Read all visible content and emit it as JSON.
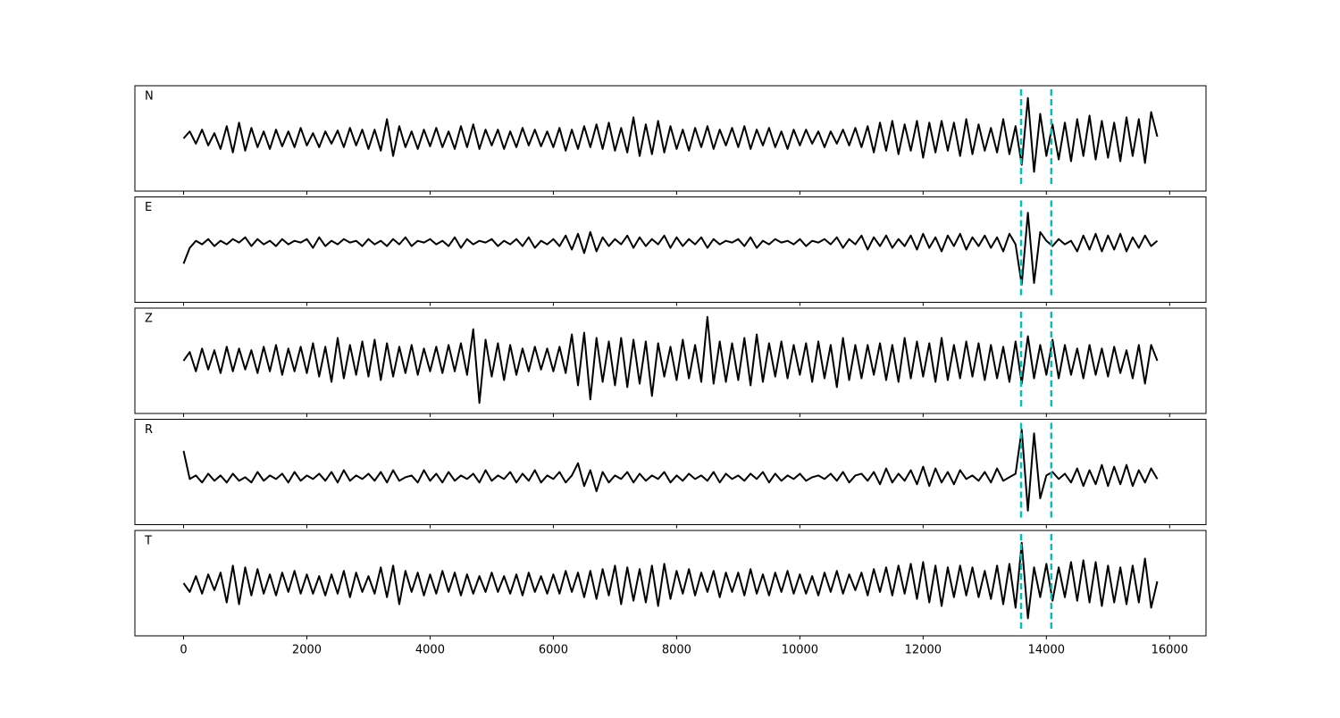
{
  "chart_data": {
    "type": "line",
    "layout": "stacked",
    "x": [
      0,
      100,
      200,
      300,
      400,
      500,
      600,
      700,
      800,
      900,
      1000,
      1100,
      1200,
      1300,
      1400,
      1500,
      1600,
      1700,
      1800,
      1900,
      2000,
      2100,
      2200,
      2300,
      2400,
      2500,
      2600,
      2700,
      2800,
      2900,
      3000,
      3100,
      3200,
      3300,
      3400,
      3500,
      3600,
      3700,
      3800,
      3900,
      4000,
      4100,
      4200,
      4300,
      4400,
      4500,
      4600,
      4700,
      4800,
      4900,
      5000,
      5100,
      5200,
      5300,
      5400,
      5500,
      5600,
      5700,
      5800,
      5900,
      6000,
      6100,
      6200,
      6300,
      6400,
      6500,
      6600,
      6700,
      6800,
      6900,
      7000,
      7100,
      7200,
      7300,
      7400,
      7500,
      7600,
      7700,
      7800,
      7900,
      8000,
      8100,
      8200,
      8300,
      8400,
      8500,
      8600,
      8700,
      8800,
      8900,
      9000,
      9100,
      9200,
      9300,
      9400,
      9500,
      9600,
      9700,
      9800,
      9900,
      10000,
      10100,
      10200,
      10300,
      10400,
      10500,
      10600,
      10700,
      10800,
      10900,
      11000,
      11100,
      11200,
      11300,
      11400,
      11500,
      11600,
      11700,
      11800,
      11900,
      12000,
      12100,
      12200,
      12300,
      12400,
      12500,
      12600,
      12700,
      12800,
      12900,
      13000,
      13100,
      13200,
      13300,
      13400,
      13500,
      13600,
      13700,
      13800,
      13900,
      14000,
      14100,
      14200,
      14300,
      14400,
      14500,
      14600,
      14700,
      14800,
      14900,
      15000,
      15100,
      15200,
      15300,
      15400,
      15500,
      15600,
      15700,
      15800
    ],
    "series": [
      {
        "name": "N",
        "color": "#000000",
        "values": [
          0,
          8,
          -6,
          10,
          -8,
          6,
          -12,
          14,
          -16,
          18,
          -14,
          12,
          -10,
          8,
          -12,
          10,
          -9,
          8,
          -10,
          12,
          -8,
          6,
          -10,
          8,
          -6,
          9,
          -10,
          12,
          -8,
          10,
          -12,
          10,
          -14,
          22,
          -20,
          14,
          -10,
          8,
          -12,
          10,
          -9,
          12,
          -10,
          8,
          -12,
          14,
          -10,
          16,
          -12,
          10,
          -8,
          10,
          -12,
          8,
          -10,
          12,
          -8,
          10,
          -9,
          8,
          -10,
          12,
          -14,
          10,
          -12,
          14,
          -10,
          16,
          -12,
          18,
          -14,
          12,
          -16,
          24,
          -20,
          16,
          -18,
          20,
          -16,
          14,
          -12,
          10,
          -14,
          12,
          -10,
          14,
          -12,
          10,
          -8,
          12,
          -10,
          14,
          -12,
          10,
          -8,
          12,
          -10,
          8,
          -12,
          10,
          -8,
          10,
          -6,
          8,
          -10,
          8,
          -6,
          10,
          -8,
          12,
          -10,
          14,
          -16,
          18,
          -14,
          20,
          -18,
          16,
          -14,
          20,
          -22,
          18,
          -16,
          20,
          -14,
          18,
          -20,
          22,
          -18,
          16,
          -14,
          12,
          -16,
          22,
          -18,
          14,
          -30,
          46,
          -38,
          28,
          -20,
          16,
          -24,
          18,
          -26,
          22,
          -20,
          26,
          -24,
          20,
          -22,
          18,
          -26,
          24,
          -20,
          22,
          -28,
          30,
          2
        ]
      },
      {
        "name": "E",
        "color": "#000000",
        "values": [
          -16,
          2,
          10,
          6,
          12,
          4,
          10,
          6,
          12,
          8,
          14,
          4,
          12,
          6,
          10,
          4,
          12,
          6,
          10,
          8,
          12,
          2,
          14,
          4,
          10,
          6,
          12,
          8,
          10,
          4,
          12,
          6,
          10,
          4,
          12,
          6,
          14,
          4,
          10,
          8,
          12,
          6,
          10,
          4,
          14,
          2,
          12,
          6,
          10,
          8,
          12,
          4,
          10,
          6,
          12,
          4,
          14,
          2,
          10,
          6,
          12,
          4,
          16,
          0,
          18,
          -4,
          20,
          -2,
          14,
          4,
          12,
          6,
          16,
          2,
          14,
          4,
          12,
          6,
          16,
          2,
          14,
          4,
          12,
          6,
          14,
          2,
          12,
          6,
          10,
          8,
          12,
          4,
          14,
          2,
          10,
          6,
          12,
          8,
          10,
          6,
          12,
          4,
          10,
          8,
          12,
          6,
          14,
          2,
          12,
          6,
          16,
          0,
          14,
          4,
          16,
          2,
          12,
          4,
          16,
          0,
          18,
          2,
          14,
          -2,
          16,
          4,
          18,
          0,
          14,
          4,
          16,
          2,
          14,
          -2,
          18,
          6,
          -40,
          42,
          -38,
          20,
          10,
          4,
          12,
          6,
          10,
          -2,
          16,
          0,
          18,
          -2,
          16,
          0,
          18,
          -2,
          14,
          2,
          16,
          4,
          10
        ]
      },
      {
        "name": "Z",
        "color": "#000000",
        "values": [
          0,
          10,
          -12,
          14,
          -10,
          12,
          -14,
          16,
          -12,
          14,
          -10,
          12,
          -14,
          16,
          -12,
          18,
          -16,
          14,
          -12,
          16,
          -14,
          20,
          -18,
          16,
          -24,
          26,
          -20,
          18,
          -16,
          22,
          -18,
          24,
          -22,
          20,
          -18,
          16,
          -14,
          18,
          -16,
          14,
          -12,
          16,
          -14,
          18,
          -12,
          20,
          -16,
          36,
          -48,
          24,
          -18,
          20,
          -22,
          18,
          -16,
          14,
          -12,
          16,
          -10,
          14,
          -12,
          16,
          -14,
          30,
          -28,
          32,
          -44,
          26,
          -24,
          22,
          -28,
          26,
          -30,
          24,
          -26,
          22,
          -40,
          20,
          -18,
          16,
          -22,
          24,
          -20,
          18,
          -24,
          50,
          -26,
          22,
          -24,
          20,
          -22,
          26,
          -28,
          30,
          -24,
          20,
          -18,
          22,
          -20,
          18,
          -16,
          20,
          -24,
          22,
          -20,
          18,
          -30,
          26,
          -22,
          18,
          -20,
          18,
          -16,
          20,
          -22,
          18,
          -24,
          26,
          -20,
          22,
          -18,
          20,
          -24,
          26,
          -22,
          18,
          -20,
          22,
          -18,
          20,
          -22,
          18,
          -20,
          16,
          -24,
          22,
          -26,
          28,
          -20,
          18,
          -16,
          24,
          -20,
          18,
          -16,
          14,
          -20,
          18,
          -16,
          14,
          -18,
          16,
          -14,
          12,
          -20,
          18,
          -26,
          18,
          0
        ]
      },
      {
        "name": "R",
        "color": "#000000",
        "values": [
          24,
          -8,
          -4,
          -12,
          -2,
          -10,
          -4,
          -12,
          -2,
          -10,
          -6,
          -12,
          0,
          -10,
          -4,
          -8,
          -2,
          -12,
          0,
          -10,
          -4,
          -8,
          -2,
          -10,
          0,
          -12,
          2,
          -10,
          -4,
          -8,
          -2,
          -10,
          0,
          -12,
          2,
          -10,
          -6,
          -4,
          -12,
          2,
          -10,
          -2,
          -12,
          0,
          -10,
          -4,
          -8,
          -2,
          -12,
          2,
          -10,
          -4,
          -8,
          0,
          -12,
          -2,
          -10,
          2,
          -12,
          -4,
          -8,
          0,
          -12,
          -4,
          10,
          -16,
          2,
          -22,
          0,
          -12,
          -4,
          -8,
          0,
          -12,
          -2,
          -10,
          -4,
          -8,
          0,
          -12,
          -4,
          -10,
          -2,
          -8,
          -4,
          -10,
          0,
          -12,
          -2,
          -8,
          -4,
          -10,
          -2,
          -8,
          0,
          -12,
          -2,
          -10,
          -4,
          -8,
          -2,
          -10,
          -6,
          -4,
          -8,
          -2,
          -10,
          0,
          -12,
          -4,
          -2,
          -10,
          0,
          -14,
          4,
          -12,
          -2,
          -10,
          2,
          -14,
          6,
          -16,
          4,
          -12,
          0,
          -14,
          2,
          -8,
          -4,
          -10,
          0,
          -12,
          4,
          -10,
          -6,
          -2,
          48,
          -44,
          44,
          -30,
          -4,
          0,
          -8,
          -2,
          -12,
          4,
          -16,
          2,
          -14,
          8,
          -16,
          6,
          -14,
          8,
          -16,
          2,
          -12,
          4,
          -8
        ]
      },
      {
        "name": "T",
        "color": "#000000",
        "values": [
          0,
          -10,
          8,
          -12,
          10,
          -8,
          12,
          -22,
          20,
          -24,
          18,
          -14,
          16,
          -12,
          10,
          -14,
          12,
          -10,
          14,
          -12,
          10,
          -12,
          8,
          -14,
          10,
          -12,
          14,
          -16,
          12,
          -10,
          8,
          -12,
          18,
          -16,
          20,
          -24,
          14,
          -10,
          12,
          -14,
          10,
          -12,
          14,
          -10,
          12,
          -14,
          10,
          -12,
          8,
          -10,
          12,
          -10,
          8,
          -12,
          10,
          -14,
          12,
          -10,
          8,
          -12,
          10,
          -12,
          14,
          -10,
          12,
          -16,
          14,
          -18,
          16,
          -14,
          20,
          -24,
          18,
          -20,
          16,
          -22,
          20,
          -26,
          22,
          -18,
          14,
          -12,
          16,
          -14,
          12,
          -10,
          14,
          -16,
          12,
          -10,
          12,
          -14,
          16,
          -12,
          10,
          -14,
          12,
          -10,
          14,
          -12,
          10,
          -12,
          8,
          -14,
          12,
          -10,
          14,
          -12,
          10,
          -8,
          12,
          -14,
          16,
          -10,
          18,
          -14,
          20,
          -12,
          22,
          -18,
          24,
          -22,
          20,
          -26,
          18,
          -16,
          20,
          -14,
          18,
          -16,
          14,
          -18,
          20,
          -24,
          22,
          -28,
          46,
          -40,
          18,
          -16,
          22,
          -20,
          18,
          -16,
          24,
          -20,
          26,
          -22,
          24,
          -26,
          20,
          -22,
          18,
          -24,
          20,
          -22,
          28,
          -28,
          2
        ]
      }
    ],
    "xlim": [
      -790,
      16590
    ],
    "xticks": [
      0,
      2000,
      4000,
      6000,
      8000,
      10000,
      12000,
      14000,
      16000
    ],
    "ylim": [
      -60,
      60
    ],
    "vlines": [
      13590,
      14080
    ],
    "vline_color": "#00bfbf"
  }
}
